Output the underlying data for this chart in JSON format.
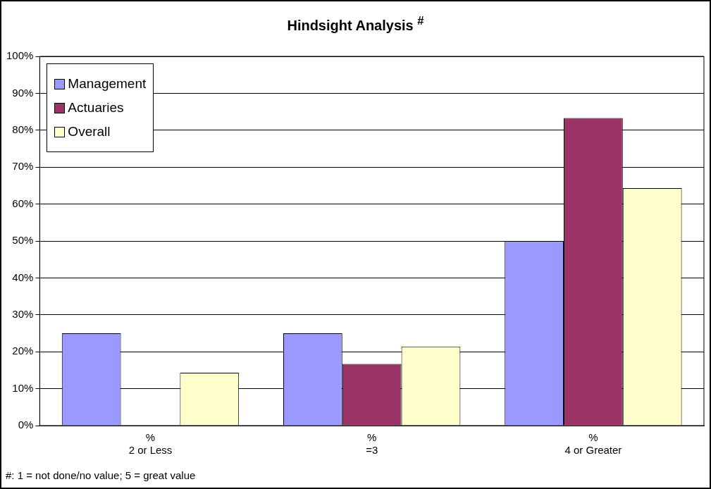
{
  "chart_data": {
    "type": "bar",
    "title": "Hindsight Analysis $^{#}$",
    "categories": [
      "%\n2 or Less",
      "%\n=3",
      "%\n4 or Greater"
    ],
    "series": [
      {
        "name": "Management",
        "color": "#9999ff",
        "values": [
          25,
          25,
          50
        ]
      },
      {
        "name": "Actuaries",
        "color": "#993366",
        "values": [
          0,
          16.7,
          83.3
        ]
      },
      {
        "name": "Overall",
        "color": "#ffffcc",
        "values": [
          14.3,
          21.4,
          64.3
        ]
      }
    ],
    "ylim": [
      0,
      100
    ],
    "yticks": [
      {
        "value": 0,
        "label": "0%"
      },
      {
        "value": 10,
        "label": "10%"
      },
      {
        "value": 20,
        "label": "20%"
      },
      {
        "value": 30,
        "label": "30%"
      },
      {
        "value": 40,
        "label": "40%"
      },
      {
        "value": 50,
        "label": "50%"
      },
      {
        "value": 60,
        "label": "60%"
      },
      {
        "value": 70,
        "label": "70%"
      },
      {
        "value": 80,
        "label": "80%"
      },
      {
        "value": 90,
        "label": "90%"
      },
      {
        "value": 100,
        "label": "100%"
      }
    ],
    "grid": "y",
    "legend": "top left",
    "annotations": [
      "#: 1 = not done/no value; 5 = great value"
    ]
  }
}
